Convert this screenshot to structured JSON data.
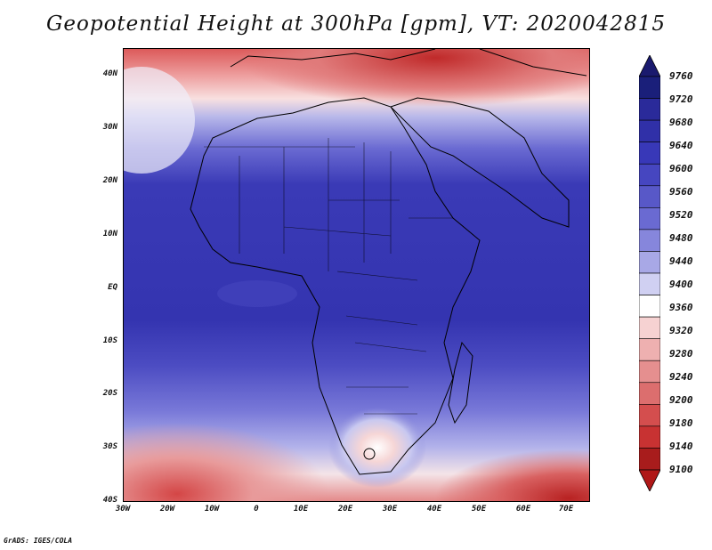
{
  "title": "Geopotential Height at 300hPa [gpm], VT: 2020042815",
  "credit": "GrADS: IGES/COLA",
  "map": {
    "lat_labels": [
      "40N",
      "30N",
      "20N",
      "10N",
      "EQ",
      "10S",
      "20S",
      "30S",
      "40S"
    ],
    "lon_labels": [
      "30W",
      "20W",
      "10W",
      "0",
      "10E",
      "20E",
      "30E",
      "40E",
      "50E",
      "60E",
      "70E"
    ],
    "lat_range": [
      -40,
      45
    ],
    "lon_range": [
      -30,
      75
    ]
  },
  "colorbar": {
    "levels": [
      "9760",
      "9720",
      "9680",
      "9640",
      "9600",
      "9560",
      "9520",
      "9480",
      "9440",
      "9400",
      "9360",
      "9320",
      "9280",
      "9240",
      "9200",
      "9180",
      "9140",
      "9100"
    ],
    "colors": [
      "#1a1f7a",
      "#2a2a9a",
      "#3030a8",
      "#3838b8",
      "#4646c0",
      "#5858c8",
      "#6a6ad2",
      "#8686dc",
      "#a8a8e6",
      "#d0d0f2",
      "#ffffff",
      "#f6d2d2",
      "#eeb0b0",
      "#e58f8f",
      "#dc6e6e",
      "#d44e4e",
      "#c83232",
      "#a81c1c"
    ],
    "top_color": "#1a1a6e",
    "bottom_color": "#b01818"
  }
}
